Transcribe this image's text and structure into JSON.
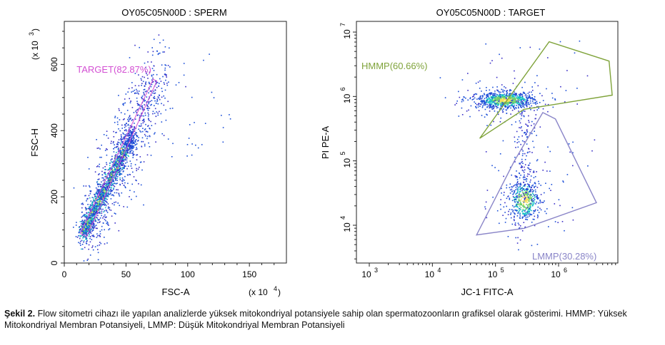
{
  "chart_data": [
    {
      "type": "scatter",
      "title": "OY05C05N00D : SPERM",
      "xlabel": "FSC-A",
      "ylabel": "FSC-H",
      "x_multiplier_label": "(x 10",
      "x_multiplier_exp": "4",
      "y_multiplier_label": "(x 10",
      "y_multiplier_exp": "3",
      "x_scale": "linear",
      "y_scale": "linear",
      "xlim": [
        0,
        180
      ],
      "ylim": [
        0,
        730
      ],
      "x_ticks": [
        "0",
        "50",
        "100",
        "150"
      ],
      "y_ticks": [
        "0",
        "200",
        "400",
        "600"
      ],
      "grid": false,
      "series": [],
      "gates": [
        {
          "name": "TARGET(82.87%)",
          "color": "#d34fd3",
          "polygon": [
            [
              13,
              90
            ],
            [
              18,
              80
            ],
            [
              75,
              550
            ],
            [
              72,
              555
            ]
          ]
        }
      ],
      "point_cloud": {
        "description_free": true,
        "main_axis_from": [
          15,
          95
        ],
        "main_axis_to": [
          55,
          390
        ]
      }
    },
    {
      "type": "scatter",
      "title": "OY05C05N00D : TARGET",
      "xlabel": "JC-1 FITC-A",
      "ylabel": "PI PE-A",
      "x_scale": "log",
      "y_scale": "log",
      "xlim": [
        1000,
        10000000
      ],
      "ylim": [
        1000,
        10000000
      ],
      "x_ticks": [
        "10^3",
        "10^4",
        "10^5",
        "10^6"
      ],
      "y_ticks": [
        "10^4",
        "10^5",
        "10^6",
        "10^7"
      ],
      "grid": false,
      "series": [],
      "gates": [
        {
          "name": "HMMP(60.66%)",
          "color": "#7fa33a",
          "polygon_log10": [
            [
              5.45,
              5.8
            ],
            [
              6.85,
              6.02
            ],
            [
              6.8,
              6.55
            ],
            [
              5.85,
              6.85
            ],
            [
              4.75,
              5.35
            ]
          ]
        },
        {
          "name": "LMMP(30.28%)",
          "color": "#8a85c8",
          "polygon_log10": [
            [
              5.3,
              5.0
            ],
            [
              5.75,
              5.75
            ],
            [
              5.95,
              5.65
            ],
            [
              6.6,
              4.35
            ],
            [
              5.45,
              3.95
            ],
            [
              4.7,
              3.85
            ]
          ]
        }
      ],
      "clusters_log10": [
        {
          "cx": 5.15,
          "cy": 5.95,
          "sx": 0.22,
          "sy": 0.06,
          "n": 700,
          "hot": "#f6e05a"
        },
        {
          "cx": 5.45,
          "cy": 4.4,
          "sx": 0.12,
          "sy": 0.15,
          "n": 380,
          "hot": "#f6e05a"
        }
      ]
    }
  ],
  "caption": {
    "lead": "Şekil 2.",
    "text": " Flow sitometri cihazı ile yapılan analizlerde yüksek mitokondriyal potansiyele sahip olan spermatozoonların grafiksel olarak gösterimi. HMMP: Yüksek Mitokondriyal Membran Potansiyeli, LMMP: Düşük Mitokondriyal Membran Potansiyeli"
  },
  "colors": {
    "axis": "#222222",
    "dense_point": "#13c0c4",
    "mid_point": "#1b4fd8",
    "sparse_point": "#3a2fc7",
    "hot_point": "#f0e442"
  }
}
